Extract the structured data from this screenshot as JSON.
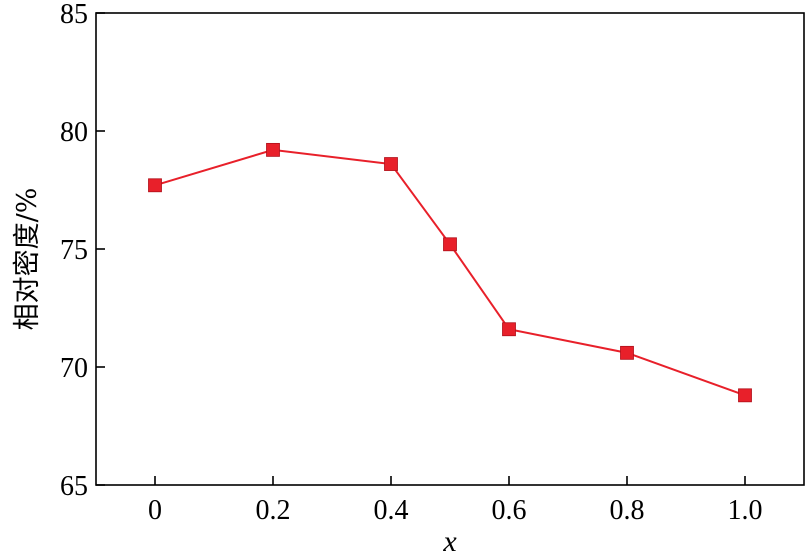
{
  "chart_data": {
    "type": "line",
    "xlabel": "x",
    "ylabel": "相对密度/%",
    "xlim": [
      -0.1,
      1.1
    ],
    "ylim": [
      65,
      85
    ],
    "xticks": [
      0,
      0.2,
      0.4,
      0.6,
      0.8,
      1.0
    ],
    "xtick_labels": [
      "0",
      "0.2",
      "0.4",
      "0.6",
      "0.8",
      "1.0"
    ],
    "yticks": [
      65,
      70,
      75,
      80,
      85
    ],
    "ytick_labels": [
      "65",
      "70",
      "75",
      "80",
      "85"
    ],
    "grid": false,
    "series": [
      {
        "color": "#e8202a",
        "marker": "square",
        "x": [
          0,
          0.2,
          0.4,
          0.5,
          0.6,
          0.8,
          1.0
        ],
        "y": [
          77.7,
          79.2,
          78.6,
          75.2,
          71.6,
          70.6,
          68.8
        ]
      }
    ]
  }
}
